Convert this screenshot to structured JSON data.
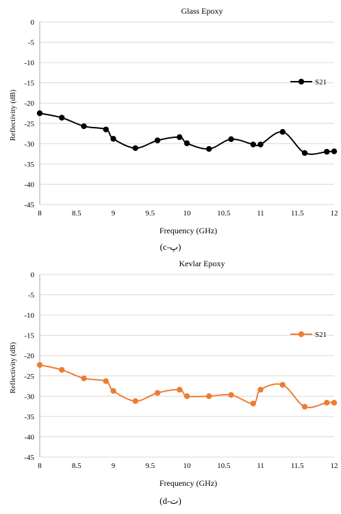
{
  "chart_data": [
    {
      "type": "line",
      "title": "Glass Epoxy",
      "xlabel": "Frequency (GHz)",
      "ylabel": "Reflectivity (dB)",
      "xlim": [
        8,
        12
      ],
      "ylim": [
        -45,
        0
      ],
      "xticks": [
        "8",
        "8.5",
        "9",
        "9.5",
        "10",
        "10.5",
        "11",
        "11.5",
        "12"
      ],
      "yticks": [
        "0",
        "-5",
        "-10",
        "-15",
        "-20",
        "-25",
        "-30",
        "-35",
        "-40",
        "-45"
      ],
      "grid": "horizontal",
      "legend_position": "right",
      "caption": "(c-پ)",
      "series": [
        {
          "name": "S21",
          "color": "#000000",
          "x": [
            8.0,
            8.3,
            8.6,
            8.9,
            9.0,
            9.3,
            9.6,
            9.9,
            10.0,
            10.3,
            10.6,
            10.9,
            11.0,
            11.3,
            11.6,
            11.9,
            12.0
          ],
          "y": [
            -22.5,
            -23.6,
            -25.7,
            -26.5,
            -28.8,
            -31.1,
            -29.2,
            -28.4,
            -29.9,
            -31.3,
            -28.9,
            -30.2,
            -30.2,
            -27.1,
            -32.3,
            -32.0,
            -31.9
          ]
        }
      ]
    },
    {
      "type": "line",
      "title": "Kevlar Epoxy",
      "xlabel": "Frequency (GHz)",
      "ylabel": "Reflectivity (dB)",
      "xlim": [
        8,
        12
      ],
      "ylim": [
        -45,
        0
      ],
      "xticks": [
        "8",
        "8.5",
        "9",
        "9.5",
        "10",
        "10.5",
        "11",
        "11.5",
        "12"
      ],
      "yticks": [
        "0",
        "-5",
        "-10",
        "-15",
        "-20",
        "-25",
        "-30",
        "-35",
        "-40",
        "-45"
      ],
      "grid": "horizontal",
      "legend_position": "right",
      "caption": "(d-ت)",
      "series": [
        {
          "name": "S21",
          "color": "#ED7D31",
          "x": [
            8.0,
            8.3,
            8.6,
            8.9,
            9.0,
            9.3,
            9.6,
            9.9,
            10.0,
            10.3,
            10.6,
            10.9,
            11.0,
            11.3,
            11.6,
            11.9,
            12.0
          ],
          "y": [
            -22.3,
            -23.5,
            -25.6,
            -26.3,
            -28.7,
            -31.2,
            -29.2,
            -28.4,
            -30.0,
            -30.0,
            -29.7,
            -31.8,
            -28.4,
            -27.2,
            -32.6,
            -31.6,
            -31.6
          ]
        }
      ]
    }
  ]
}
